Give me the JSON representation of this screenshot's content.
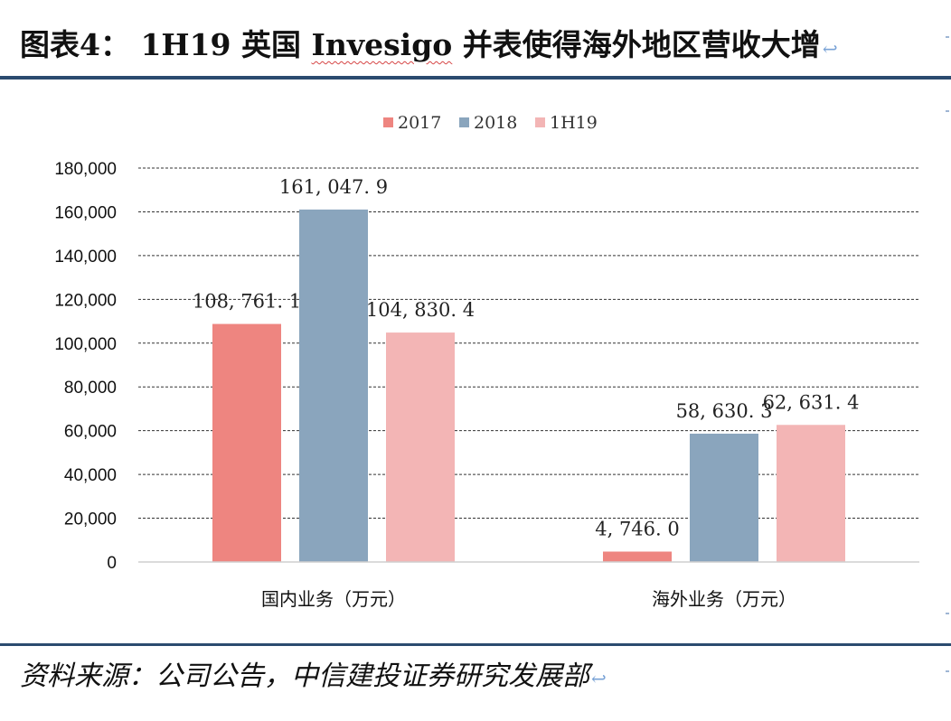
{
  "header": {
    "title_prefix": "图表4： 1H19 英国 ",
    "title_brand": "Invesigo",
    "title_suffix": " 并表使得海外地区营收大增",
    "return_mark": "↩"
  },
  "footer": {
    "source": "资料来源：公司公告，中信建投证券研究发展部",
    "return_mark": "↩"
  },
  "chart_data": {
    "type": "bar",
    "title": "",
    "xlabel": "",
    "ylabel": "",
    "categories": [
      "国内业务（万元）",
      "海外业务（万元）"
    ],
    "series": [
      {
        "name": "2017",
        "values": [
          108761.1,
          4746.0
        ],
        "labels": [
          "108, 761. 1",
          "4, 746. 0"
        ],
        "color": "#ee8580"
      },
      {
        "name": "2018",
        "values": [
          161047.9,
          58630.3
        ],
        "labels": [
          "161, 047. 9",
          "58, 630. 3"
        ],
        "color": "#8aa5bd"
      },
      {
        "name": "1H19",
        "values": [
          104830.4,
          62631.4
        ],
        "labels": [
          "104, 830. 4",
          "62, 631. 4"
        ],
        "color": "#f3b5b5"
      }
    ],
    "ylim": [
      0,
      180000
    ],
    "yticks": [
      "0",
      "20,000",
      "40,000",
      "60,000",
      "80,000",
      "100,000",
      "120,000",
      "140,000",
      "160,000",
      "180,000"
    ],
    "grid": true,
    "legend": "top-center"
  }
}
